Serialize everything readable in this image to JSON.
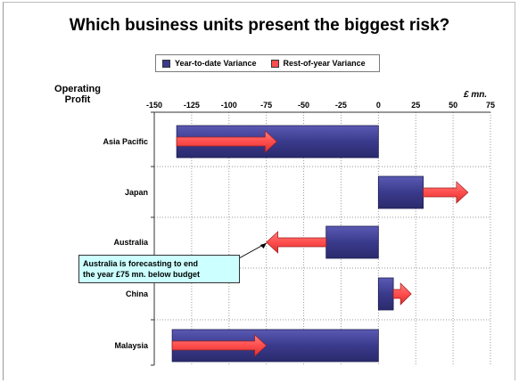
{
  "chart_data": {
    "type": "bar",
    "title": "Which business units present the biggest risk?",
    "ylabel_line1": "Operating",
    "ylabel_line2": "Profit",
    "unit_label": "£ mn.",
    "xlim": [
      -150,
      75
    ],
    "xticks": [
      -150,
      -125,
      -100,
      -75,
      -50,
      -25,
      0,
      25,
      50,
      75
    ],
    "categories": [
      "Asia Pacific",
      "Japan",
      "Australia",
      "China",
      "Malaysia"
    ],
    "series": [
      {
        "name": "Year-to-date Variance",
        "color": "#3a3a8c",
        "start": [
          0,
          0,
          0,
          0,
          0
        ],
        "end": [
          -135,
          30,
          -35,
          10,
          -138
        ]
      },
      {
        "name": "Rest-of-year Variance",
        "color": "#ff4d4d",
        "start": [
          -135,
          30,
          -35,
          10,
          -138
        ],
        "end": [
          -68,
          60,
          -75,
          22,
          -75
        ]
      }
    ],
    "grid": true,
    "legend_position": "top-center",
    "annotation": {
      "line1": "Australia is forecasting to end",
      "line2": "the year £75 mn. below budget",
      "target_category": "Australia",
      "target_value": -75
    }
  }
}
